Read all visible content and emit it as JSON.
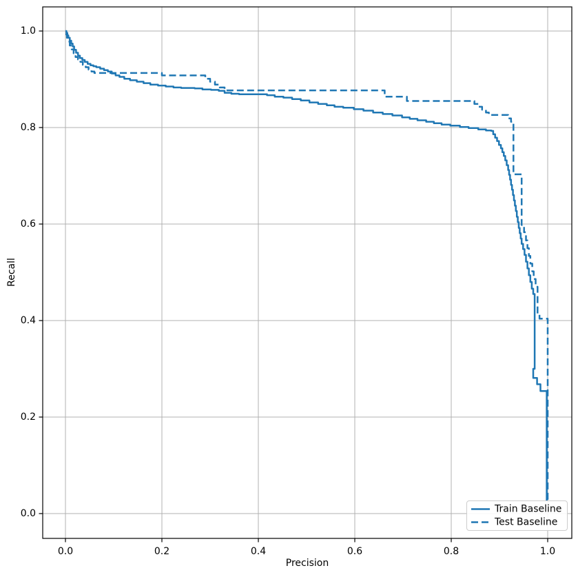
{
  "chart_data": {
    "type": "line",
    "title": "",
    "xlabel": "Precision",
    "ylabel": "Recall",
    "x_ticks": [
      0.0,
      0.2,
      0.4,
      0.6,
      0.8,
      1.0
    ],
    "x_tick_labels": [
      "0.0",
      "0.2",
      "0.4",
      "0.6",
      "0.8",
      "1.0"
    ],
    "y_ticks": [
      0.0,
      0.2,
      0.4,
      0.6,
      0.8,
      1.0
    ],
    "y_tick_labels": [
      "0.0",
      "0.2",
      "0.4",
      "0.6",
      "0.8",
      "1.0"
    ],
    "xlim": [
      -0.05,
      1.05
    ],
    "ylim": [
      -0.05,
      1.05
    ],
    "grid": true,
    "legend": {
      "position": "lower right",
      "entries": [
        "Train Baseline",
        "Test Baseline"
      ]
    },
    "colors": {
      "line": "#1f77b4",
      "grid": "#b0b0b0",
      "spine": "#000000",
      "text": "#000000",
      "legend_border": "#cccccc",
      "background": "#ffffff"
    },
    "series": [
      {
        "name": "Train Baseline",
        "style": "solid",
        "points": [
          [
            0.0,
            1.0
          ],
          [
            0.002,
            0.996
          ],
          [
            0.004,
            0.991
          ],
          [
            0.006,
            0.986
          ],
          [
            0.009,
            0.98
          ],
          [
            0.012,
            0.974
          ],
          [
            0.015,
            0.968
          ],
          [
            0.018,
            0.961
          ],
          [
            0.022,
            0.955
          ],
          [
            0.026,
            0.949
          ],
          [
            0.03,
            0.944
          ],
          [
            0.035,
            0.94
          ],
          [
            0.04,
            0.936
          ],
          [
            0.046,
            0.932
          ],
          [
            0.052,
            0.929
          ],
          [
            0.058,
            0.927
          ],
          [
            0.064,
            0.925
          ],
          [
            0.072,
            0.922
          ],
          [
            0.08,
            0.919
          ],
          [
            0.088,
            0.916
          ],
          [
            0.096,
            0.912
          ],
          [
            0.104,
            0.908
          ],
          [
            0.112,
            0.905
          ],
          [
            0.122,
            0.901
          ],
          [
            0.134,
            0.898
          ],
          [
            0.148,
            0.895
          ],
          [
            0.162,
            0.892
          ],
          [
            0.176,
            0.889
          ],
          [
            0.192,
            0.887
          ],
          [
            0.208,
            0.885
          ],
          [
            0.224,
            0.883
          ],
          [
            0.24,
            0.882
          ],
          [
            0.268,
            0.881
          ],
          [
            0.284,
            0.879
          ],
          [
            0.302,
            0.878
          ],
          [
            0.318,
            0.876
          ],
          [
            0.33,
            0.872
          ],
          [
            0.344,
            0.87
          ],
          [
            0.36,
            0.869
          ],
          [
            0.418,
            0.867
          ],
          [
            0.434,
            0.864
          ],
          [
            0.452,
            0.862
          ],
          [
            0.47,
            0.859
          ],
          [
            0.488,
            0.856
          ],
          [
            0.506,
            0.852
          ],
          [
            0.524,
            0.849
          ],
          [
            0.542,
            0.846
          ],
          [
            0.558,
            0.843
          ],
          [
            0.576,
            0.841
          ],
          [
            0.598,
            0.838
          ],
          [
            0.618,
            0.835
          ],
          [
            0.638,
            0.831
          ],
          [
            0.658,
            0.828
          ],
          [
            0.678,
            0.825
          ],
          [
            0.698,
            0.821
          ],
          [
            0.714,
            0.818
          ],
          [
            0.73,
            0.815
          ],
          [
            0.748,
            0.812
          ],
          [
            0.764,
            0.809
          ],
          [
            0.78,
            0.806
          ],
          [
            0.798,
            0.804
          ],
          [
            0.818,
            0.801
          ],
          [
            0.836,
            0.799
          ],
          [
            0.856,
            0.796
          ],
          [
            0.872,
            0.794
          ],
          [
            0.883,
            0.793
          ],
          [
            0.887,
            0.786
          ],
          [
            0.891,
            0.779
          ],
          [
            0.895,
            0.772
          ],
          [
            0.899,
            0.764
          ],
          [
            0.903,
            0.757
          ],
          [
            0.906,
            0.749
          ],
          [
            0.909,
            0.741
          ],
          [
            0.912,
            0.732
          ],
          [
            0.915,
            0.722
          ],
          [
            0.918,
            0.712
          ],
          [
            0.92,
            0.702
          ],
          [
            0.922,
            0.692
          ],
          [
            0.924,
            0.681
          ],
          [
            0.926,
            0.671
          ],
          [
            0.928,
            0.66
          ],
          [
            0.93,
            0.649
          ],
          [
            0.932,
            0.638
          ],
          [
            0.934,
            0.627
          ],
          [
            0.936,
            0.615
          ],
          [
            0.938,
            0.604
          ],
          [
            0.94,
            0.592
          ],
          [
            0.942,
            0.581
          ],
          [
            0.944,
            0.57
          ],
          [
            0.946,
            0.559
          ],
          [
            0.949,
            0.548
          ],
          [
            0.952,
            0.536
          ],
          [
            0.955,
            0.522
          ],
          [
            0.958,
            0.508
          ],
          [
            0.961,
            0.494
          ],
          [
            0.964,
            0.48
          ],
          [
            0.967,
            0.466
          ],
          [
            0.97,
            0.455
          ],
          [
            0.973,
            0.449
          ],
          [
            0.973,
            0.3
          ],
          [
            0.97,
            0.292
          ],
          [
            0.97,
            0.281
          ],
          [
            0.978,
            0.281
          ],
          [
            0.978,
            0.268
          ],
          [
            0.985,
            0.268
          ],
          [
            0.985,
            0.254
          ],
          [
            0.998,
            0.254
          ],
          [
            0.998,
            0.026
          ]
        ]
      },
      {
        "name": "Test Baseline",
        "style": "dashed",
        "points": [
          [
            0.0,
            0.993
          ],
          [
            0.003,
            0.986
          ],
          [
            0.006,
            0.978
          ],
          [
            0.009,
            0.97
          ],
          [
            0.013,
            0.962
          ],
          [
            0.017,
            0.954
          ],
          [
            0.021,
            0.946
          ],
          [
            0.026,
            0.941
          ],
          [
            0.031,
            0.936
          ],
          [
            0.036,
            0.93
          ],
          [
            0.042,
            0.925
          ],
          [
            0.048,
            0.92
          ],
          [
            0.054,
            0.916
          ],
          [
            0.06,
            0.913
          ],
          [
            0.19,
            0.913
          ],
          [
            0.2,
            0.908
          ],
          [
            0.28,
            0.908
          ],
          [
            0.29,
            0.901
          ],
          [
            0.3,
            0.895
          ],
          [
            0.31,
            0.889
          ],
          [
            0.32,
            0.883
          ],
          [
            0.33,
            0.877
          ],
          [
            0.655,
            0.877
          ],
          [
            0.662,
            0.864
          ],
          [
            0.702,
            0.864
          ],
          [
            0.708,
            0.855
          ],
          [
            0.84,
            0.855
          ],
          [
            0.848,
            0.849
          ],
          [
            0.856,
            0.843
          ],
          [
            0.864,
            0.837
          ],
          [
            0.872,
            0.831
          ],
          [
            0.878,
            0.826
          ],
          [
            0.912,
            0.826
          ],
          [
            0.918,
            0.819
          ],
          [
            0.924,
            0.812
          ],
          [
            0.929,
            0.806
          ],
          [
            0.929,
            0.703
          ],
          [
            0.946,
            0.697
          ],
          [
            0.946,
            0.598
          ],
          [
            0.951,
            0.583
          ],
          [
            0.955,
            0.566
          ],
          [
            0.958,
            0.55
          ],
          [
            0.961,
            0.534
          ],
          [
            0.964,
            0.518
          ],
          [
            0.968,
            0.502
          ],
          [
            0.971,
            0.486
          ],
          [
            0.975,
            0.47
          ],
          [
            0.979,
            0.455
          ],
          [
            0.979,
            0.412
          ],
          [
            0.983,
            0.404
          ],
          [
            1.0,
            0.404
          ],
          [
            1.0,
            0.026
          ]
        ]
      }
    ]
  }
}
